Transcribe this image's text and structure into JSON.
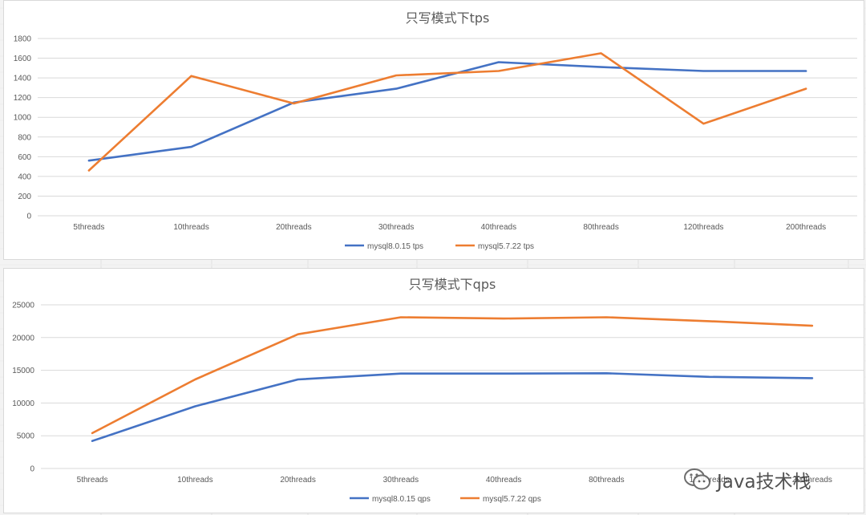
{
  "chart_data": [
    {
      "type": "line",
      "title": "只写模式下tps",
      "categories": [
        "5threads",
        "10threads",
        "20threads",
        "30threads",
        "40threads",
        "80threads",
        "120threads",
        "200threads"
      ],
      "ylim": [
        0,
        1800
      ],
      "yticks": [
        0,
        200,
        400,
        600,
        800,
        1000,
        1200,
        1400,
        1600,
        1800
      ],
      "grid": true,
      "legend_position": "bottom",
      "series": [
        {
          "name": "mysql8.0.15 tps",
          "color": "#4472c4",
          "values": [
            560,
            700,
            1150,
            1290,
            1560,
            1510,
            1470,
            1470
          ]
        },
        {
          "name": "mysql5.7.22 tps",
          "color": "#ed7d31",
          "values": [
            460,
            1420,
            1140,
            1425,
            1470,
            1650,
            935,
            1290
          ]
        }
      ]
    },
    {
      "type": "line",
      "title": "只写模式下qps",
      "categories": [
        "5threads",
        "10threads",
        "20threads",
        "30threads",
        "40threads",
        "80threads",
        "120threads",
        "200threads"
      ],
      "ylim": [
        0,
        25000
      ],
      "yticks": [
        0,
        5000,
        10000,
        15000,
        20000,
        25000
      ],
      "grid": true,
      "legend_position": "bottom",
      "series": [
        {
          "name": "mysql8.0.15 qps",
          "color": "#4472c4",
          "values": [
            4200,
            9500,
            13600,
            14500,
            14500,
            14550,
            14000,
            13800
          ]
        },
        {
          "name": "mysql5.7.22 qps",
          "color": "#ed7d31",
          "values": [
            5400,
            13600,
            20500,
            23100,
            22900,
            23100,
            22500,
            21800
          ]
        }
      ]
    }
  ],
  "watermark": {
    "text": "Java技术栈",
    "icon": "wechat-icon"
  }
}
